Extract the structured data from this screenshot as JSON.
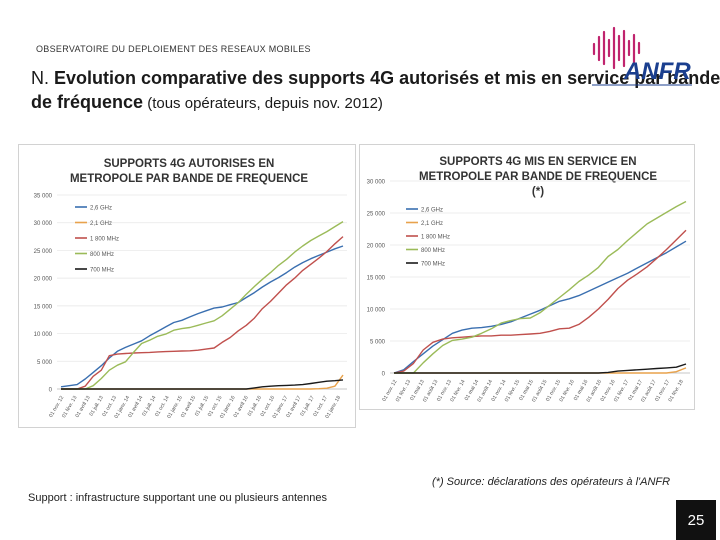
{
  "header": {
    "label": "OBSERVATOIRE DU DEPLOIEMENT DES RESEAUX MOBILES",
    "title_lead": "N. ",
    "title_main": "Evolution comparative des supports 4G autorisés et mis en service par bande de fréquence",
    "title_sub": " (tous opérateurs, depuis nov. 2012)"
  },
  "logo": {
    "text": "ANFR",
    "brand_color": "#1b3f8f",
    "accent_color": "#c0246e"
  },
  "footnote": "(*) Source: déclarations des opérateurs à l'ANFR",
  "support_note": "Support : infrastructure supportant une ou plusieurs antennes",
  "page_number": "25",
  "chart_data": [
    {
      "type": "line",
      "title": "SUPPORTS 4G AUTORISES EN METROPOLE PAR BANDE DE FREQUENCE",
      "ylim": [
        0,
        35000
      ],
      "y_ticks": [
        0,
        5000,
        10000,
        15000,
        20000,
        25000,
        30000,
        35000
      ],
      "y_tick_labels": [
        "0",
        "5 000",
        "10 000",
        "15 000",
        "20 000",
        "25 000",
        "30 000",
        "35 000"
      ],
      "x_tick_labels": [
        "01 nov. 12",
        "01 févr. 13",
        "01 avril 13",
        "01 juil. 13",
        "01 oct. 13",
        "01 janv. 14",
        "01 avril 14",
        "01 juil. 14",
        "01 oct. 14",
        "01 janv. 15",
        "01 avril 15",
        "01 juil. 15",
        "01 oct. 15",
        "01 janv. 16",
        "01 avril 16",
        "01 juil. 16",
        "01 oct. 16",
        "01 janv. 17",
        "01 avril 17",
        "01 juil. 17",
        "01 oct. 17",
        "01 janv. 18"
      ],
      "legend_position": "top-left",
      "series": [
        {
          "name": "2,6 GHz",
          "color": "#3a6fb0",
          "values": [
            400,
            600,
            800,
            1800,
            3000,
            4200,
            5600,
            6800,
            7500,
            8100,
            8700,
            9600,
            10400,
            11200,
            12000,
            12400,
            13000,
            13600,
            14100,
            14600,
            14800,
            15200,
            15600,
            16500,
            17400,
            18400,
            19300,
            20100,
            21000,
            22000,
            22800,
            23500,
            24100,
            24700,
            25300,
            25800
          ]
        },
        {
          "name": "2,1 GHz",
          "color": "#e8a24c",
          "values": [
            0,
            0,
            0,
            0,
            0,
            0,
            0,
            0,
            0,
            0,
            0,
            0,
            0,
            0,
            0,
            0,
            0,
            0,
            0,
            0,
            0,
            0,
            0,
            0,
            0,
            0,
            0,
            0,
            0,
            0,
            0,
            0,
            50,
            150,
            500,
            2500
          ]
        },
        {
          "name": "1 800 MHz",
          "color": "#c0504d",
          "values": [
            0,
            0,
            0,
            500,
            2300,
            3400,
            6000,
            6300,
            6400,
            6500,
            6550,
            6600,
            6700,
            6750,
            6800,
            6850,
            6900,
            7000,
            7200,
            7400,
            8400,
            9300,
            10500,
            11500,
            12800,
            14500,
            15800,
            17300,
            18800,
            20000,
            21400,
            22500,
            23600,
            24800,
            26200,
            27500
          ]
        },
        {
          "name": "800 MHz",
          "color": "#9bbb59",
          "values": [
            0,
            0,
            0,
            0,
            600,
            1900,
            3400,
            4300,
            4900,
            6600,
            8200,
            8800,
            9500,
            9900,
            10600,
            10900,
            11100,
            11500,
            11900,
            12300,
            13200,
            14400,
            15600,
            17100,
            18500,
            19800,
            21000,
            22300,
            23400,
            24700,
            25800,
            26800,
            27600,
            28400,
            29300,
            30200
          ]
        },
        {
          "name": "700 MHz",
          "color": "#1a1a1a",
          "values": [
            0,
            0,
            0,
            0,
            0,
            0,
            0,
            0,
            0,
            0,
            0,
            0,
            0,
            0,
            0,
            0,
            0,
            0,
            0,
            0,
            0,
            0,
            0,
            0,
            200,
            400,
            500,
            600,
            650,
            700,
            800,
            1000,
            1200,
            1400,
            1500,
            1650
          ]
        }
      ]
    },
    {
      "type": "line",
      "title": "SUPPORTS 4G MIS EN SERVICE EN METROPOLE PAR BANDE DE FREQUENCE (*)",
      "ylim": [
        0,
        30000
      ],
      "y_ticks": [
        0,
        5000,
        10000,
        15000,
        20000,
        25000,
        30000
      ],
      "y_tick_labels": [
        "0",
        "5 000",
        "10 000",
        "15 000",
        "20 000",
        "25 000",
        "30 000"
      ],
      "x_tick_labels": [
        "01 nov. 12",
        "01 févr. 13",
        "01 mai 13",
        "01 août 13",
        "01 nov. 13",
        "01 févr. 14",
        "01 mai 14",
        "01 août 14",
        "01 nov. 14",
        "01 févr. 15",
        "01 mai 15",
        "01 août 15",
        "01 nov. 15",
        "01 févr. 16",
        "01 mai 16",
        "01 août 16",
        "01 nov. 16",
        "01 févr. 17",
        "01 mai 17",
        "01 août 17",
        "01 nov. 17",
        "01 févr. 18"
      ],
      "legend_position": "top-left",
      "series": [
        {
          "name": "2,6 GHz",
          "color": "#3a6fb0",
          "values": [
            0,
            500,
            1800,
            3000,
            4200,
            5200,
            6200,
            6700,
            7000,
            7100,
            7300,
            7600,
            8000,
            8600,
            9200,
            9800,
            10500,
            11200,
            11600,
            12100,
            12800,
            13500,
            14200,
            14900,
            15600,
            16400,
            17200,
            18000,
            18800,
            19700,
            20600
          ]
        },
        {
          "name": "2,1 GHz",
          "color": "#e8a24c",
          "values": [
            0,
            0,
            0,
            0,
            0,
            0,
            0,
            0,
            0,
            0,
            0,
            0,
            0,
            0,
            0,
            0,
            0,
            0,
            0,
            0,
            0,
            0,
            0,
            0,
            0,
            0,
            0,
            0,
            0,
            200,
            800
          ]
        },
        {
          "name": "1 800 MHz",
          "color": "#c0504d",
          "values": [
            0,
            300,
            1500,
            3600,
            4800,
            5300,
            5500,
            5600,
            5700,
            5800,
            5800,
            5900,
            5900,
            6000,
            6100,
            6200,
            6500,
            6900,
            7000,
            7600,
            8700,
            10000,
            11500,
            13200,
            14500,
            15500,
            16600,
            17900,
            19300,
            20800,
            22300
          ]
        },
        {
          "name": "800 MHz",
          "color": "#9bbb59",
          "values": [
            0,
            0,
            0,
            1600,
            3000,
            4300,
            5100,
            5300,
            5600,
            6200,
            6900,
            7800,
            8200,
            8500,
            8600,
            9400,
            10600,
            11800,
            13000,
            14300,
            15300,
            16500,
            18200,
            19300,
            20700,
            22000,
            23300,
            24200,
            25100,
            26000,
            26800
          ]
        },
        {
          "name": "700 MHz",
          "color": "#1a1a1a",
          "values": [
            0,
            0,
            0,
            0,
            0,
            0,
            0,
            0,
            0,
            0,
            0,
            0,
            0,
            0,
            0,
            0,
            0,
            0,
            0,
            0,
            0,
            0,
            100,
            300,
            400,
            500,
            600,
            700,
            800,
            900,
            1400
          ]
        }
      ]
    }
  ]
}
